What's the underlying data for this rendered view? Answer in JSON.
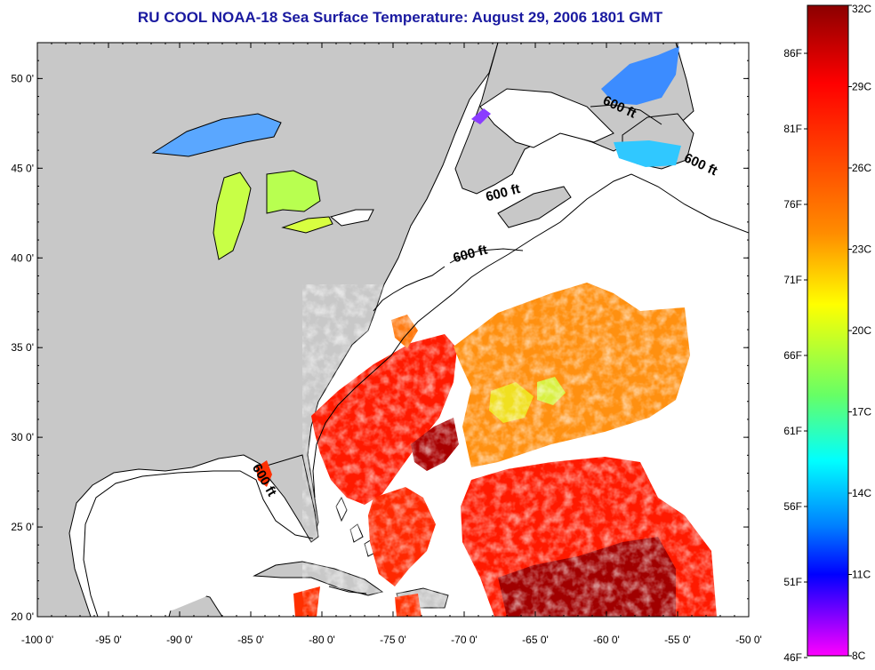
{
  "title": "RU COOL  NOAA-18  Sea Surface Temperature:  August 29, 2006 1801 GMT",
  "colors": {
    "title": "#1a1aa0",
    "land": "#c8c8c8",
    "ocean": "#ffffff",
    "coast": "#000000"
  },
  "map": {
    "lon_range": [
      -100,
      -50
    ],
    "lat_range": [
      20,
      52
    ],
    "lon_ticks": [
      -100,
      -95,
      -90,
      -85,
      -80,
      -75,
      -70,
      -65,
      -60,
      -55,
      -50
    ],
    "lat_ticks": [
      20,
      25,
      30,
      35,
      40,
      45,
      50
    ],
    "lon_tick_labels": [
      "-100 0'",
      "-95 0'",
      "-90 0'",
      "-85 0'",
      "-80 0'",
      "-75 0'",
      "-70 0'",
      "-65 0'",
      "-60 0'",
      "-55 0'",
      "-50 0'"
    ],
    "lat_tick_labels": [
      "20 0'",
      "25 0'",
      "30 0'",
      "35 0'",
      "40 0'",
      "45 0'",
      "50 0'"
    ],
    "contour_label": "600 ft",
    "contour_labels": [
      {
        "text": "600 ft",
        "lon": -59.2,
        "lat": 48.2,
        "angle": 25
      },
      {
        "text": "600 ft",
        "lon": -53.5,
        "lat": 45.0,
        "angle": 25
      },
      {
        "text": "600 ft",
        "lon": -67.2,
        "lat": 43.4,
        "angle": -15
      },
      {
        "text": "600 ft",
        "lon": -69.5,
        "lat": 40.0,
        "angle": -15
      },
      {
        "text": "600 ft",
        "lon": -84.3,
        "lat": 27.5,
        "angle": 60
      }
    ]
  },
  "colorbar": {
    "celsius_labels": [
      "32C",
      "29C",
      "26C",
      "23C",
      "20C",
      "17C",
      "14C",
      "11C",
      "8C"
    ],
    "fahrenheit_labels": [
      "86F",
      "81F",
      "76F",
      "71F",
      "66F",
      "61F",
      "56F",
      "51F",
      "46F"
    ],
    "gradient_colors": [
      "#8b0000",
      "#ff0000",
      "#ff8c00",
      "#ffff00",
      "#66ff66",
      "#00ffff",
      "#0080ff",
      "#0000ff",
      "#ff00ff"
    ]
  }
}
